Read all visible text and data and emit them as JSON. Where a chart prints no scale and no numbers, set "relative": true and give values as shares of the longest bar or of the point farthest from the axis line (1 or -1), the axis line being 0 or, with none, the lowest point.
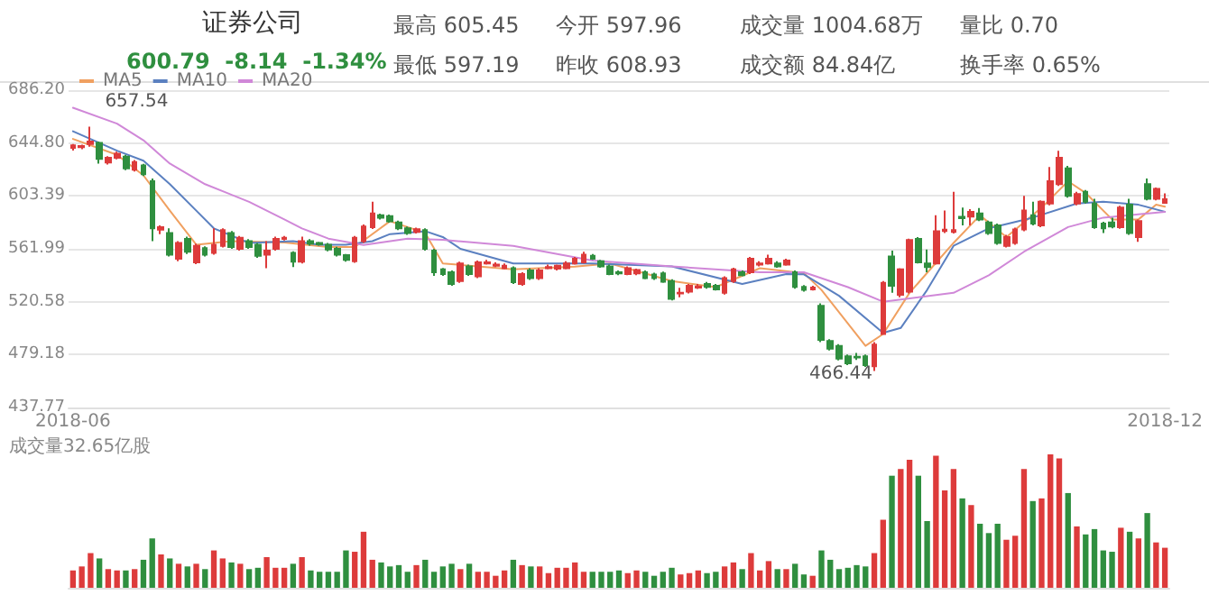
{
  "chart_data": [
    {
      "type": "candlestick",
      "title": "证券公司",
      "subtitle": "600.79  -8.14  -1.34%",
      "annotations": [
        "最高 605.45",
        "今开 597.96",
        "成交量 1004.68万",
        "量比 0.70",
        "最低 597.19",
        "昨收 608.93",
        "成交额 84.84亿",
        "换手率 0.65%",
        {
          "text": "657.54",
          "y": 657.54
        },
        {
          "text": "466.44",
          "y": 466.44
        }
      ],
      "categories": [
        "2018-06",
        null,
        null,
        null,
        null,
        null,
        null,
        null,
        null,
        null,
        null,
        null,
        null,
        null,
        null,
        null,
        null,
        null,
        null,
        null,
        null,
        null,
        null,
        null,
        null,
        null,
        null,
        null,
        null,
        null,
        null,
        null,
        null,
        null,
        null,
        null,
        null,
        null,
        null,
        null,
        null,
        null,
        null,
        null,
        null,
        null,
        null,
        null,
        null,
        null,
        null,
        null,
        null,
        null,
        null,
        null,
        null,
        null,
        null,
        null,
        null,
        null,
        null,
        null,
        null,
        null,
        null,
        null,
        null,
        null,
        null,
        null,
        null,
        null,
        null,
        null,
        null,
        null,
        null,
        null,
        null,
        null,
        null,
        null,
        null,
        null,
        null,
        null,
        null,
        null,
        null,
        null,
        null,
        null,
        null,
        null,
        null,
        null,
        null,
        null,
        null,
        null,
        null,
        null,
        null,
        null,
        null,
        null,
        null,
        null,
        null,
        null,
        null,
        null,
        null,
        null,
        null,
        null,
        null,
        null,
        null,
        null,
        null,
        null,
        "2018-12"
      ],
      "series": [
        {
          "type": "candlestick",
          "ohlc": [
            [
              641,
              644,
              639,
              643
            ],
            [
              641.5,
              643.5,
              640,
              642.5
            ],
            [
              644,
              657.54,
              642,
              646
            ],
            [
              645,
              646,
              628.7,
              632.4
            ],
            [
              629.6,
              634.5,
              628,
              633.3
            ],
            [
              633.3,
              638,
              632,
              636.5
            ],
            [
              634.2,
              635.5,
              623.5,
              625
            ],
            [
              624,
              631.5,
              622.5,
              630
            ],
            [
              627.3,
              628.5,
              619,
              620.4
            ],
            [
              615,
              617,
              568,
              578.1
            ],
            [
              577,
              580.4,
              573.5,
              579
            ],
            [
              574.4,
              578,
              556,
              557.4
            ],
            [
              554.2,
              568,
              552.3,
              566.6
            ],
            [
              569.8,
              571.5,
              558,
              559.7
            ],
            [
              551.4,
              566,
              550,
              564.3
            ],
            [
              562.5,
              564,
              556,
              557.4
            ],
            [
              558.8,
              578,
              557.4,
              565.2
            ],
            [
              564.3,
              578.1,
              563,
              576.7
            ],
            [
              574.4,
              576,
              562,
              563.4
            ],
            [
              562,
              572,
              560.6,
              570.7
            ],
            [
              568,
              569.5,
              562,
              563.4
            ],
            [
              565.2,
              566.5,
              555,
              556.5
            ],
            [
              557.4,
              568,
              546.8,
              560.6
            ],
            [
              562,
              571.5,
              560.6,
              569.8
            ],
            [
              569.8,
              572,
              568.5,
              570.7
            ],
            [
              558.8,
              560,
              547.7,
              551.9
            ],
            [
              551.9,
              571.5,
              550.5,
              568
            ],
            [
              568,
              569.5,
              564.5,
              566.1
            ],
            [
              566.5,
              567.5,
              564.5,
              565.5
            ],
            [
              565.2,
              566.5,
              560,
              561.5
            ],
            [
              562,
              563.5,
              556,
              557.4
            ],
            [
              557,
              558,
              552,
              553.3
            ],
            [
              552.3,
              572,
              551,
              570.7
            ],
            [
              568,
              581,
              566.6,
              579.5
            ],
            [
              579,
              598.8,
              577.5,
              589.6
            ],
            [
              588.2,
              589.5,
              585,
              586.4
            ],
            [
              587.5,
              588.8,
              582.5,
              583.5
            ],
            [
              582.7,
              584,
              576.7,
              578.1
            ],
            [
              578,
              579.5,
              573,
              574.4
            ],
            [
              575.3,
              578.5,
              574,
              577.3
            ],
            [
              576.7,
              578.1,
              560.6,
              562
            ],
            [
              560.6,
              562,
              540.8,
              543.6
            ],
            [
              545.9,
              547,
              540.8,
              542.2
            ],
            [
              543.6,
              545,
              533,
              534.4
            ],
            [
              536.7,
              552,
              535.3,
              550.5
            ],
            [
              548.2,
              549.6,
              540.8,
              542.2
            ],
            [
              540.4,
              552.8,
              539,
              551.4
            ],
            [
              550.5,
              553.3,
              549.6,
              551.4
            ],
            [
              548.7,
              551.4,
              547.7,
              549.6
            ],
            [
              546.8,
              550.5,
              545.9,
              548.7
            ],
            [
              546.8,
              548.2,
              534.4,
              535.8
            ],
            [
              534.4,
              543.6,
              533,
              542.2
            ],
            [
              545,
              546.8,
              537.6,
              539
            ],
            [
              539,
              546.8,
              537.6,
              545
            ],
            [
              546.8,
              549.6,
              545.9,
              547.7
            ],
            [
              546.4,
              549.6,
              545,
              548.7
            ],
            [
              546.8,
              552.3,
              545.9,
              550.5
            ],
            [
              550.5,
              555.6,
              549.6,
              554.2
            ],
            [
              551.4,
              559.7,
              550.5,
              557.4
            ],
            [
              556.5,
              558,
              553.3,
              554.2
            ],
            [
              552.3,
              553.3,
              547.2,
              548.2
            ],
            [
              548.2,
              549.6,
              541.3,
              542.2
            ],
            [
              543.6,
              545,
              541.3,
              542.7
            ],
            [
              542.2,
              548.2,
              541.3,
              546.8
            ],
            [
              542.7,
              546.4,
              541.3,
              545.4
            ],
            [
              543.6,
              545,
              538.1,
              539
            ],
            [
              541.8,
              543.2,
              537.6,
              539
            ],
            [
              542.7,
              544.1,
              535.3,
              536.2
            ],
            [
              536.7,
              538.1,
              521.5,
              522.9
            ],
            [
              527,
              531.5,
              524,
              527.5
            ],
            [
              528.4,
              534.4,
              527,
              533
            ],
            [
              531.6,
              534.4,
              530.5,
              532.5
            ],
            [
              534.4,
              536,
              530.7,
              532.1
            ],
            [
              533,
              534.4,
              529.3,
              530.2
            ],
            [
              527.5,
              540.4,
              526.1,
              539
            ],
            [
              536.7,
              547.2,
              535.3,
              545.9
            ],
            [
              543.6,
              545,
              540.4,
              541.3
            ],
            [
              543.6,
              555.6,
              542.2,
              554.2
            ],
            [
              549.6,
              552.3,
              548.2,
              550.5
            ],
            [
              550.5,
              557.4,
              549.6,
              554.2
            ],
            [
              550.5,
              552.3,
              547.2,
              548.2
            ],
            [
              549.6,
              554.2,
              548.7,
              552.8
            ],
            [
              543.6,
              545,
              530.7,
              532.1
            ],
            [
              532.1,
              533.5,
              528.4,
              529.8
            ],
            [
              530.2,
              533,
              529.3,
              531.6
            ],
            [
              517.4,
              519.2,
              488.9,
              490.7
            ],
            [
              489.8,
              491.2,
              482.4,
              483.8
            ],
            [
              486,
              487.4,
              474.6,
              476
            ],
            [
              477.8,
              479.2,
              470.9,
              472.3
            ],
            [
              477.4,
              480.5,
              475,
              476.9
            ],
            [
              477.8,
              479.2,
              469.5,
              470.9
            ],
            [
              470,
              489,
              466.44,
              487
            ],
            [
              495.3,
              536.7,
              495.3,
              535.3
            ],
            [
              556,
              560.6,
              527.5,
              533
            ],
            [
              526,
              546.8,
              524,
              545.9
            ],
            [
              528.4,
              570,
              527,
              568.9
            ],
            [
              569.8,
              571.2,
              550.5,
              551.4
            ],
            [
              550.5,
              561.5,
              543.6,
              547.7
            ],
            [
              550.5,
              588.2,
              549.6,
              575.8
            ],
            [
              576,
              591.9,
              574.4,
              577
            ],
            [
              575.3,
              606.6,
              574,
              576.7
            ],
            [
              587,
              594.2,
              580.4,
              586
            ],
            [
              587.3,
              593,
              580.4,
              591
            ],
            [
              589.6,
              594,
              583.6,
              585
            ],
            [
              582.7,
              584,
              573,
              574.4
            ],
            [
              580.4,
              581.8,
              565.2,
              566.6
            ],
            [
              564.3,
              573,
              563,
              571.2
            ],
            [
              566.6,
              578.5,
              565.2,
              577.2
            ],
            [
              577.2,
              603.4,
              575.8,
              591.9
            ],
            [
              588.2,
              598.8,
              580.4,
              581.8
            ],
            [
              580.4,
              600,
              579,
              598.8
            ],
            [
              597.4,
              626,
              596,
              614.9
            ],
            [
              612.6,
              638.8,
              611.2,
              633.3
            ],
            [
              625,
              627,
              602,
              603.4
            ],
            [
              597.4,
              606.6,
              596,
              604.8
            ],
            [
              606.6,
              608,
              597.4,
              598.8
            ],
            [
              597.4,
              601.1,
              577.7,
              579
            ],
            [
              581.8,
              583.2,
              574.4,
              578.1
            ],
            [
              582.7,
              586.4,
              578.1,
              579.5
            ],
            [
              579,
              595.6,
              577.7,
              594.2
            ],
            [
              596.5,
              601.1,
              572.9,
              574.4
            ],
            [
              571.2,
              585,
              567.5,
              583.6
            ],
            [
              612.6,
              617,
              600,
              601.1
            ],
            [
              601.1,
              610,
              600,
              608.93
            ],
            [
              597.96,
              605.45,
              597.19,
              600.79
            ]
          ],
          "colors": [
            "#dd3b3b",
            "#dd3b3b",
            "#dd3b3b",
            "#2f8f3f",
            "#dd3b3b",
            "#dd3b3b",
            "#2f8f3f",
            "#dd3b3b",
            "#2f8f3f",
            "#2f8f3f",
            "#dd3b3b",
            "#2f8f3f",
            "#dd3b3b",
            "#2f8f3f",
            "#dd3b3b",
            "#2f8f3f",
            "#dd3b3b",
            "#dd3b3b",
            "#2f8f3f",
            "#dd3b3b",
            "#2f8f3f",
            "#2f8f3f",
            "#dd3b3b",
            "#dd3b3b",
            "#dd3b3b",
            "#2f8f3f",
            "#dd3b3b",
            "#2f8f3f",
            "#2f8f3f",
            "#2f8f3f",
            "#2f8f3f",
            "#2f8f3f",
            "#dd3b3b",
            "#dd3b3b",
            "#dd3b3b",
            "#2f8f3f",
            "#2f8f3f",
            "#2f8f3f",
            "#2f8f3f",
            "#dd3b3b",
            "#2f8f3f",
            "#2f8f3f",
            "#2f8f3f",
            "#2f8f3f",
            "#dd3b3b",
            "#2f8f3f",
            "#dd3b3b",
            "#dd3b3b",
            "#dd3b3b",
            "#dd3b3b",
            "#2f8f3f",
            "#dd3b3b",
            "#2f8f3f",
            "#dd3b3b",
            "#dd3b3b",
            "#dd3b3b",
            "#dd3b3b",
            "#dd3b3b",
            "#dd3b3b",
            "#2f8f3f",
            "#2f8f3f",
            "#2f8f3f",
            "#2f8f3f",
            "#dd3b3b",
            "#dd3b3b",
            "#2f8f3f",
            "#2f8f3f",
            "#2f8f3f",
            "#2f8f3f",
            "#dd3b3b",
            "#dd3b3b",
            "#dd3b3b",
            "#2f8f3f",
            "#2f8f3f",
            "#dd3b3b",
            "#dd3b3b",
            "#2f8f3f",
            "#dd3b3b",
            "#dd3b3b",
            "#dd3b3b",
            "#2f8f3f",
            "#dd3b3b",
            "#2f8f3f",
            "#2f8f3f",
            "#dd3b3b",
            "#2f8f3f",
            "#2f8f3f",
            "#2f8f3f",
            "#2f8f3f",
            "#2f8f3f",
            "#2f8f3f",
            "#dd3b3b",
            "#dd3b3b",
            "#2f8f3f",
            "#dd3b3b",
            "#dd3b3b",
            "#2f8f3f",
            "#2f8f3f",
            "#dd3b3b",
            "#dd3b3b",
            "#dd3b3b",
            "#2f8f3f",
            "#dd3b3b",
            "#2f8f3f",
            "#2f8f3f",
            "#2f8f3f",
            "#dd3b3b",
            "#dd3b3b",
            "#dd3b3b",
            "#2f8f3f",
            "#dd3b3b",
            "#dd3b3b",
            "#dd3b3b",
            "#2f8f3f",
            "#dd3b3b",
            "#2f8f3f",
            "#2f8f3f",
            "#2f8f3f",
            "#2f8f3f",
            "#dd3b3b",
            "#2f8f3f",
            "#dd3b3b",
            "#2f8f3f",
            "#dd3b3b",
            "#dd3b3b"
          ]
        },
        {
          "type": "line",
          "name": "MA5",
          "color": "#f0a060",
          "values": [
            648,
            null,
            null,
            null,
            null,
            635.6,
            null,
            null,
            619.5,
            null,
            null,
            591.9,
            null,
            null,
            565.2,
            null,
            null,
            null,
            568,
            null,
            null,
            null,
            null,
            null,
            567,
            null,
            null,
            null,
            null,
            563.4,
            null,
            null,
            563.4,
            null,
            null,
            null,
            583.6,
            null,
            null,
            null,
            574.4,
            null,
            550.5,
            null,
            null,
            null,
            null,
            null,
            null,
            null,
            546,
            null,
            null,
            null,
            null,
            null,
            null,
            548,
            null,
            null,
            null,
            550.5,
            null,
            null,
            null,
            null,
            null,
            null,
            536.7,
            null,
            null,
            null,
            null,
            532,
            null,
            null,
            null,
            null,
            546.8,
            null,
            null,
            null,
            null,
            543,
            null,
            529.8,
            null,
            null,
            null,
            null,
            486,
            null,
            495.3,
            null,
            null,
            527.5,
            null,
            null,
            null,
            null,
            566.6,
            null,
            null,
            588.2,
            null,
            null,
            571.2,
            null,
            null,
            null,
            594.2,
            null,
            null,
            614.9,
            null,
            605.7,
            null,
            null,
            585,
            null,
            null,
            585,
            null,
            596.5,
            595
          ]
        },
        {
          "type": "line",
          "name": "MA10",
          "color": "#5b80c0",
          "values": [
            654,
            null,
            null,
            null,
            null,
            638.8,
            null,
            null,
            631,
            null,
            null,
            612.6,
            null,
            null,
            591.9,
            null,
            578,
            null,
            null,
            null,
            566.6,
            null,
            null,
            null,
            null,
            568,
            null,
            null,
            565.2,
            null,
            null,
            565.2,
            null,
            null,
            568,
            null,
            573.5,
            null,
            null,
            null,
            575.8,
            null,
            571.2,
            null,
            562,
            null,
            null,
            null,
            null,
            null,
            550.5,
            null,
            null,
            null,
            null,
            null,
            null,
            null,
            null,
            550.5,
            null,
            null,
            null,
            null,
            null,
            null,
            null,
            null,
            548.2,
            null,
            null,
            null,
            null,
            null,
            null,
            null,
            534.4,
            null,
            null,
            null,
            null,
            542.2,
            null,
            542,
            null,
            null,
            null,
            525.2,
            null,
            null,
            null,
            null,
            496.2,
            null,
            500,
            null,
            null,
            529.8,
            null,
            null,
            564.3,
            null,
            null,
            null,
            578,
            null,
            null,
            null,
            null,
            586.4,
            null,
            null,
            null,
            null,
            597.4,
            null,
            null,
            598.8,
            null,
            null,
            null,
            596.5,
            null,
            null,
            591
          ]
        },
        {
          "type": "line",
          "name": "MA20",
          "color": "#d088d8",
          "values": [
            672.4,
            null,
            null,
            null,
            null,
            660,
            null,
            null,
            647,
            null,
            null,
            628.7,
            null,
            null,
            null,
            612.6,
            null,
            null,
            null,
            null,
            598.8,
            null,
            null,
            null,
            585,
            null,
            578,
            null,
            null,
            570,
            null,
            null,
            null,
            565,
            null,
            null,
            null,
            null,
            570,
            null,
            null,
            null,
            569,
            null,
            null,
            null,
            null,
            null,
            null,
            null,
            564.3,
            null,
            null,
            null,
            null,
            null,
            null,
            null,
            null,
            552.8,
            null,
            null,
            null,
            null,
            null,
            null,
            null,
            null,
            548.2,
            null,
            null,
            null,
            null,
            null,
            null,
            null,
            null,
            null,
            543.6,
            null,
            null,
            null,
            null,
            543.6,
            null,
            null,
            null,
            null,
            532,
            null,
            null,
            null,
            520.6,
            null,
            null,
            null,
            null,
            null,
            null,
            null,
            527.5,
            null,
            null,
            null,
            541.3,
            null,
            null,
            null,
            559.7,
            null,
            null,
            null,
            null,
            579,
            null,
            null,
            null,
            586.4,
            null,
            null,
            null,
            null,
            null,
            null,
            591
          ]
        }
      ],
      "ylim": [
        437.77,
        686.2
      ],
      "yticks": [
        {
          "value": 437.77,
          "label": "437.77"
        },
        {
          "value": 479.18,
          "label": "479.18"
        },
        {
          "value": 520.58,
          "label": "520.58"
        },
        {
          "value": 561.99,
          "label": "561.99"
        },
        {
          "value": 603.39,
          "label": "603.39"
        },
        {
          "value": 644.8,
          "label": "644.80"
        },
        {
          "value": 686.2,
          "label": "686.20"
        }
      ],
      "grid": "y",
      "legend": "top left",
      "marker": "none"
    },
    {
      "type": "bar",
      "title": "成交量32.65亿股",
      "relative": true,
      "categories": [
        null,
        null,
        null,
        null,
        null,
        null,
        null,
        null,
        null,
        null,
        null,
        null,
        null,
        null,
        null,
        null,
        null,
        null,
        null,
        null,
        null,
        null,
        null,
        null,
        null,
        null,
        null,
        null,
        null,
        null,
        null,
        null,
        null,
        null,
        null,
        null,
        null,
        null,
        null,
        null,
        null,
        null,
        null,
        null,
        null,
        null,
        null,
        null,
        null,
        null,
        null,
        null,
        null,
        null,
        null,
        null,
        null,
        null,
        null,
        null,
        null,
        null,
        null,
        null,
        null,
        null,
        null,
        null,
        null,
        null,
        null,
        null,
        null,
        null,
        null,
        null,
        null,
        null,
        null,
        null,
        null,
        null,
        null,
        null,
        null,
        null,
        null,
        null,
        null,
        null,
        null,
        null,
        null,
        null,
        null,
        null,
        null,
        null,
        null,
        null,
        null,
        null,
        null,
        null,
        null,
        null,
        null,
        null,
        null,
        null,
        null,
        null,
        null,
        null,
        null,
        null,
        null,
        null,
        null,
        null,
        null,
        null,
        null,
        null,
        null
      ],
      "values": [
        0.13,
        0.16,
        0.26,
        0.22,
        0.14,
        0.13,
        0.13,
        0.14,
        0.21,
        0.37,
        0.25,
        0.22,
        0.18,
        0.16,
        0.18,
        0.14,
        0.28,
        0.22,
        0.19,
        0.18,
        0.14,
        0.15,
        0.23,
        0.15,
        0.15,
        0.18,
        0.23,
        0.13,
        0.12,
        0.12,
        0.12,
        0.28,
        0.27,
        0.42,
        0.21,
        0.19,
        0.16,
        0.17,
        0.12,
        0.17,
        0.21,
        0.12,
        0.16,
        0.18,
        0.14,
        0.18,
        0.12,
        0.12,
        0.09,
        0.13,
        0.21,
        0.17,
        0.16,
        0.16,
        0.11,
        0.15,
        0.15,
        0.19,
        0.12,
        0.12,
        0.12,
        0.12,
        0.13,
        0.11,
        0.13,
        0.12,
        0.09,
        0.12,
        0.15,
        0.1,
        0.11,
        0.13,
        0.11,
        0.12,
        0.16,
        0.19,
        0.14,
        0.26,
        0.13,
        0.2,
        0.14,
        0.14,
        0.18,
        0.1,
        0.09,
        0.28,
        0.21,
        0.14,
        0.15,
        0.17,
        0.16,
        0.26,
        0.51,
        0.84,
        0.89,
        0.96,
        0.84,
        0.5,
        0.99,
        0.73,
        0.89,
        0.67,
        0.62,
        0.48,
        0.41,
        0.48,
        0.36,
        0.39,
        0.89,
        0.65,
        0.67,
        1,
        0.97,
        0.71,
        0.46,
        0.4,
        0.44,
        0.28,
        0.27,
        0.45,
        0.42,
        0.37,
        0.56,
        0.34,
        0.3
      ],
      "colors": [
        "#dd3b3b",
        "#dd3b3b",
        "#dd3b3b",
        "#2f8f3f",
        "#dd3b3b",
        "#dd3b3b",
        "#2f8f3f",
        "#dd3b3b",
        "#2f8f3f",
        "#2f8f3f",
        "#dd3b3b",
        "#2f8f3f",
        "#dd3b3b",
        "#2f8f3f",
        "#dd3b3b",
        "#2f8f3f",
        "#dd3b3b",
        "#dd3b3b",
        "#2f8f3f",
        "#dd3b3b",
        "#2f8f3f",
        "#2f8f3f",
        "#dd3b3b",
        "#dd3b3b",
        "#dd3b3b",
        "#2f8f3f",
        "#dd3b3b",
        "#2f8f3f",
        "#2f8f3f",
        "#2f8f3f",
        "#2f8f3f",
        "#2f8f3f",
        "#dd3b3b",
        "#dd3b3b",
        "#dd3b3b",
        "#2f8f3f",
        "#2f8f3f",
        "#2f8f3f",
        "#2f8f3f",
        "#dd3b3b",
        "#2f8f3f",
        "#2f8f3f",
        "#2f8f3f",
        "#2f8f3f",
        "#dd3b3b",
        "#2f8f3f",
        "#dd3b3b",
        "#dd3b3b",
        "#dd3b3b",
        "#dd3b3b",
        "#2f8f3f",
        "#dd3b3b",
        "#2f8f3f",
        "#dd3b3b",
        "#dd3b3b",
        "#dd3b3b",
        "#dd3b3b",
        "#dd3b3b",
        "#dd3b3b",
        "#2f8f3f",
        "#2f8f3f",
        "#2f8f3f",
        "#2f8f3f",
        "#dd3b3b",
        "#dd3b3b",
        "#2f8f3f",
        "#2f8f3f",
        "#2f8f3f",
        "#2f8f3f",
        "#dd3b3b",
        "#dd3b3b",
        "#dd3b3b",
        "#2f8f3f",
        "#2f8f3f",
        "#dd3b3b",
        "#dd3b3b",
        "#2f8f3f",
        "#dd3b3b",
        "#dd3b3b",
        "#dd3b3b",
        "#2f8f3f",
        "#dd3b3b",
        "#2f8f3f",
        "#2f8f3f",
        "#dd3b3b",
        "#2f8f3f",
        "#2f8f3f",
        "#2f8f3f",
        "#2f8f3f",
        "#2f8f3f",
        "#2f8f3f",
        "#dd3b3b",
        "#dd3b3b",
        "#2f8f3f",
        "#dd3b3b",
        "#dd3b3b",
        "#2f8f3f",
        "#2f8f3f",
        "#dd3b3b",
        "#dd3b3b",
        "#dd3b3b",
        "#2f8f3f",
        "#dd3b3b",
        "#2f8f3f",
        "#2f8f3f",
        "#2f8f3f",
        "#dd3b3b",
        "#dd3b3b",
        "#dd3b3b",
        "#2f8f3f",
        "#dd3b3b",
        "#dd3b3b",
        "#dd3b3b",
        "#2f8f3f",
        "#dd3b3b",
        "#2f8f3f",
        "#2f8f3f",
        "#2f8f3f",
        "#2f8f3f",
        "#dd3b3b",
        "#2f8f3f",
        "#dd3b3b",
        "#2f8f3f",
        "#dd3b3b",
        "#dd3b3b"
      ]
    }
  ]
}
